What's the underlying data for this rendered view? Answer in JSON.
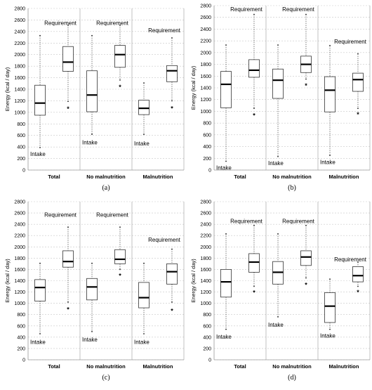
{
  "figure": {
    "panels": [
      {
        "label": "(a)",
        "chart_data": {
          "type": "box",
          "ylabel": "Energy (kcal / day)",
          "ylim": [
            0,
            2800
          ],
          "yticks": [
            0,
            200,
            400,
            600,
            800,
            1000,
            1200,
            1400,
            1600,
            1800,
            2000,
            2200,
            2400,
            2600,
            2800
          ],
          "grid": "horizontal dashed",
          "categories": [
            "Total",
            "No malnutrition",
            "Malnutrition"
          ],
          "series": [
            {
              "name": "Intake",
              "boxes": [
                {
                  "min": 390,
                  "q1": 950,
                  "median": 1160,
                  "q3": 1470,
                  "max": 2330
                },
                {
                  "min": 620,
                  "q1": 1010,
                  "median": 1300,
                  "q3": 1720,
                  "max": 2330
                },
                {
                  "min": 620,
                  "q1": 960,
                  "median": 1070,
                  "q3": 1210,
                  "max": 1510
                }
              ]
            },
            {
              "name": "Requirement",
              "boxes": [
                {
                  "min": 1190,
                  "q1": 1710,
                  "median": 1870,
                  "q3": 2140,
                  "max": 2510,
                  "outliers": [
                    1070
                  ]
                },
                {
                  "min": 1560,
                  "q1": 1780,
                  "median": 2000,
                  "q3": 2160,
                  "max": 2510,
                  "outliers": [
                    1450
                  ]
                },
                {
                  "min": 1200,
                  "q1": 1530,
                  "median": 1720,
                  "q3": 1810,
                  "max": 2290,
                  "outliers": [
                    1080
                  ]
                }
              ]
            }
          ],
          "annotations": [
            {
              "text": "Requirement",
              "category": 0,
              "y": 2550
            },
            {
              "text": "Intake",
              "category": 0,
              "y": 280
            },
            {
              "text": "Requirement",
              "category": 1,
              "y": 2550
            },
            {
              "text": "Intake",
              "category": 1,
              "y": 480
            },
            {
              "text": "Requirement",
              "category": 2,
              "y": 2420
            },
            {
              "text": "Intake",
              "category": 2,
              "y": 460
            }
          ]
        }
      },
      {
        "label": "(b)",
        "chart_data": {
          "type": "box",
          "ylabel": "Energy (kcal / day)",
          "ylim": [
            0,
            2800
          ],
          "yticks": [
            0,
            200,
            400,
            600,
            800,
            1000,
            1200,
            1400,
            1600,
            1800,
            2000,
            2200,
            2400,
            2600,
            2800
          ],
          "grid": "horizontal dashed",
          "categories": [
            "Total",
            "No malnutrition",
            "Malnutrition"
          ],
          "series": [
            {
              "name": "Intake",
              "boxes": [
                {
                  "min": 150,
                  "q1": 1060,
                  "median": 1460,
                  "q3": 1680,
                  "max": 2130
                },
                {
                  "min": 230,
                  "q1": 1220,
                  "median": 1530,
                  "q3": 1720,
                  "max": 2130
                },
                {
                  "min": 250,
                  "q1": 990,
                  "median": 1360,
                  "q3": 1590,
                  "max": 2120
                }
              ]
            },
            {
              "name": "Requirement",
              "boxes": [
                {
                  "min": 1050,
                  "q1": 1580,
                  "median": 1700,
                  "q3": 1880,
                  "max": 2650,
                  "outliers": [
                    940
                  ]
                },
                {
                  "min": 1550,
                  "q1": 1660,
                  "median": 1800,
                  "q3": 1940,
                  "max": 2650,
                  "outliers": [
                    1450
                  ]
                },
                {
                  "min": 1050,
                  "q1": 1340,
                  "median": 1540,
                  "q3": 1650,
                  "max": 1980,
                  "outliers": [
                    960
                  ]
                }
              ]
            }
          ],
          "annotations": [
            {
              "text": "Requirement",
              "category": 0,
              "y": 2740
            },
            {
              "text": "Intake",
              "category": 0,
              "y": 40
            },
            {
              "text": "Requirement",
              "category": 1,
              "y": 2740
            },
            {
              "text": "Intake",
              "category": 1,
              "y": 120
            },
            {
              "text": "Requirement",
              "category": 2,
              "y": 2190
            },
            {
              "text": "Intake",
              "category": 2,
              "y": 140
            }
          ]
        }
      },
      {
        "label": "(c)",
        "chart_data": {
          "type": "box",
          "ylabel": "Energy (kcal / day)",
          "ylim": [
            0,
            2800
          ],
          "yticks": [
            0,
            200,
            400,
            600,
            800,
            1000,
            1200,
            1400,
            1600,
            1800,
            2000,
            2200,
            2400,
            2600,
            2800
          ],
          "grid": "horizontal dashed",
          "categories": [
            "Total",
            "No malnutrition",
            "Malnutrition"
          ],
          "series": [
            {
              "name": "Intake",
              "boxes": [
                {
                  "min": 460,
                  "q1": 1040,
                  "median": 1280,
                  "q3": 1420,
                  "max": 1710
                },
                {
                  "min": 500,
                  "q1": 1060,
                  "median": 1290,
                  "q3": 1440,
                  "max": 1710
                },
                {
                  "min": 460,
                  "q1": 920,
                  "median": 1100,
                  "q3": 1370,
                  "max": 1710
                }
              ]
            },
            {
              "name": "Requirement",
              "boxes": [
                {
                  "min": 1020,
                  "q1": 1640,
                  "median": 1740,
                  "q3": 1930,
                  "max": 2350,
                  "outliers": [
                    900
                  ]
                },
                {
                  "min": 1600,
                  "q1": 1700,
                  "median": 1780,
                  "q3": 1950,
                  "max": 2350,
                  "outliers": [
                    1500
                  ]
                },
                {
                  "min": 1020,
                  "q1": 1340,
                  "median": 1560,
                  "q3": 1700,
                  "max": 1960,
                  "outliers": [
                    880
                  ]
                }
              ]
            }
          ],
          "annotations": [
            {
              "text": "Requirement",
              "category": 0,
              "y": 2570
            },
            {
              "text": "Intake",
              "category": 0,
              "y": 320
            },
            {
              "text": "Requirement",
              "category": 1,
              "y": 2570
            },
            {
              "text": "Intake",
              "category": 1,
              "y": 360
            },
            {
              "text": "Requirement",
              "category": 2,
              "y": 2130
            },
            {
              "text": "Intake",
              "category": 2,
              "y": 320
            }
          ]
        }
      },
      {
        "label": "(d)",
        "chart_data": {
          "type": "box",
          "ylabel": "Energy (kcal / day)",
          "ylim": [
            0,
            2800
          ],
          "yticks": [
            0,
            200,
            400,
            600,
            800,
            1000,
            1200,
            1400,
            1600,
            1800,
            2000,
            2200,
            2400,
            2600,
            2800
          ],
          "grid": "horizontal dashed",
          "categories": [
            "Total",
            "No malnutrition",
            "Malnutrition"
          ],
          "series": [
            {
              "name": "Intake",
              "boxes": [
                {
                  "min": 540,
                  "q1": 1110,
                  "median": 1380,
                  "q3": 1600,
                  "max": 2230
                },
                {
                  "min": 760,
                  "q1": 1340,
                  "median": 1550,
                  "q3": 1740,
                  "max": 2230
                },
                {
                  "min": 540,
                  "q1": 660,
                  "median": 950,
                  "q3": 1190,
                  "max": 1430
                }
              ]
            },
            {
              "name": "Requirement",
              "boxes": [
                {
                  "min": 1300,
                  "q1": 1550,
                  "median": 1730,
                  "q3": 1880,
                  "max": 2380,
                  "outliers": [
                    1200
                  ]
                },
                {
                  "min": 1450,
                  "q1": 1670,
                  "median": 1820,
                  "q3": 1930,
                  "max": 2380,
                  "outliers": [
                    1340
                  ]
                },
                {
                  "min": 1300,
                  "q1": 1380,
                  "median": 1490,
                  "q3": 1650,
                  "max": 1730,
                  "outliers": [
                    1210
                  ]
                }
              ]
            }
          ],
          "annotations": [
            {
              "text": "Requirement",
              "category": 0,
              "y": 2460
            },
            {
              "text": "Intake",
              "category": 0,
              "y": 410
            },
            {
              "text": "Requirement",
              "category": 1,
              "y": 2460
            },
            {
              "text": "Intake",
              "category": 1,
              "y": 620
            },
            {
              "text": "Requirement",
              "category": 2,
              "y": 1780
            },
            {
              "text": "Intake",
              "category": 2,
              "y": 430
            }
          ]
        }
      }
    ]
  }
}
